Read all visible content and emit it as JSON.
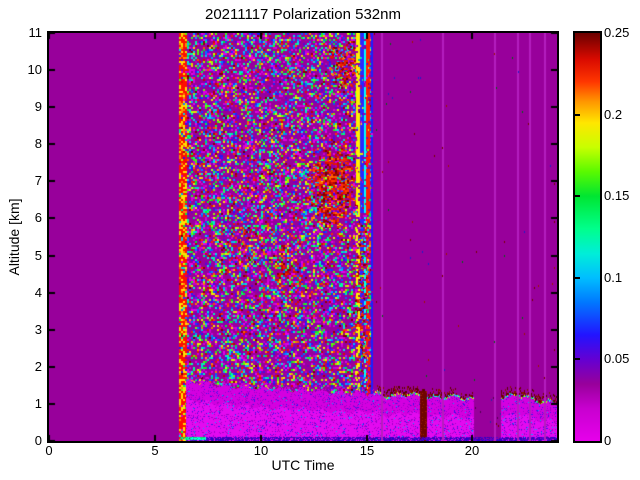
{
  "title": "20211117 Polarization 532nm",
  "chart_data": {
    "type": "heatmap",
    "title": "20211117 Polarization 532nm",
    "xlabel": "UTC Time",
    "ylabel": "Altitude [km]",
    "xlim": [
      0,
      24
    ],
    "ylim": [
      0,
      11
    ],
    "x_ticks": [
      0,
      5,
      10,
      15,
      20
    ],
    "x_tick_labels": [
      "0",
      "5",
      "10",
      "15",
      "20"
    ],
    "y_ticks": [
      0,
      1,
      2,
      3,
      4,
      5,
      6,
      7,
      8,
      9,
      10,
      11
    ],
    "y_tick_labels": [
      "0",
      "1",
      "2",
      "3",
      "4",
      "5",
      "6",
      "7",
      "8",
      "9",
      "10",
      "11"
    ],
    "colorbar": {
      "min": 0,
      "max": 0.25,
      "ticks": [
        0,
        0.05,
        0.1,
        0.15,
        0.2,
        0.25
      ],
      "tick_labels": [
        "0",
        "0.05",
        "0.1",
        "0.15",
        "0.2",
        "0.25"
      ]
    },
    "colormap_stops": [
      [
        0.0,
        "#E600EB"
      ],
      [
        0.02,
        "#C800CF"
      ],
      [
        0.035,
        "#98009B"
      ],
      [
        0.05,
        "#6400D2"
      ],
      [
        0.065,
        "#2214FF"
      ],
      [
        0.085,
        "#0078FF"
      ],
      [
        0.1,
        "#00BEFF"
      ],
      [
        0.115,
        "#00EED8"
      ],
      [
        0.13,
        "#00FF8C"
      ],
      [
        0.15,
        "#00E632"
      ],
      [
        0.165,
        "#5AFA00"
      ],
      [
        0.18,
        "#C8FF00"
      ],
      [
        0.195,
        "#FFE600"
      ],
      [
        0.208,
        "#FF9600"
      ],
      [
        0.22,
        "#FF3700"
      ],
      [
        0.234,
        "#D90A00"
      ],
      [
        0.25,
        "#6B0000"
      ]
    ],
    "features": [
      "Uniform low-depolarization background (~0) from 00:00 to ~06:10 UTC",
      "Saturated red/yellow vertical stripe at ~06:15 UTC spanning 0-11 km",
      "High random speckle noise column from ~06:15 to ~15:15 UTC across all altitudes",
      "Dark-red (>=0.21) cloud patches ~12:00-14:45 UTC at 5.7-8.1 km and 9.5-10.9 km",
      "Saturated yellow/red/green vertical stripes ~14:35-15:10 UTC, blue line at ~15:13",
      "Magenta boundary-layer band (~0.01) below ~1.5 km from ~06:30 to 24:00 UTC",
      "Cyan/green boundary-layer top edge after ~15:20 UTC with dark-red layer above it",
      "Dark-red column in boundary layer ~17:35 UTC; band gap ~20:05-21:20 UTC",
      "Faint lighter-purple vertical lines at ~15:42, 18:33, 21:00, 22:06, 22:42, 23:24 UTC"
    ],
    "render_features": {
      "seed": 20211117,
      "background_color": "#98009B",
      "noise_band": {
        "t0": 6.15,
        "t1": 15.25,
        "draw_p": 0.55,
        "gamma": 1.5,
        "darkred_p": 0.05
      },
      "red_stripe": {
        "t0": 6.16,
        "t1": 6.46
      },
      "end_stripes": {
        "t0": 14.55,
        "t1": 15.12,
        "colors": [
          "#FFF000",
          "#FF1E00",
          "#00DC00",
          "#FF9600",
          "#00FFFF",
          "#2828FF"
        ],
        "weights": [
          0.34,
          0.26,
          0.14,
          0.11,
          0.08,
          0.07
        ]
      },
      "blue_line_t": 15.22,
      "red_blobs": [
        [
          12.0,
          14.75,
          5.7,
          8.1,
          0.5
        ],
        [
          13.2,
          14.6,
          9.5,
          10.9,
          0.4
        ],
        [
          10.3,
          12.2,
          3.8,
          5.6,
          0.18
        ],
        [
          8.2,
          10.0,
          4.5,
          6.3,
          0.1
        ],
        [
          14.3,
          15.05,
          1.5,
          6.0,
          0.35
        ]
      ],
      "boundary_layer": {
        "t0": 6.5,
        "gap": [
          20.05,
          21.35
        ],
        "top_profile": [
          [
            6.5,
            1.62
          ],
          [
            8,
            1.5
          ],
          [
            10,
            1.42
          ],
          [
            12,
            1.36
          ],
          [
            14,
            1.3
          ],
          [
            15.4,
            1.28
          ],
          [
            16,
            1.2
          ],
          [
            17,
            1.28
          ],
          [
            18,
            1.16
          ],
          [
            19,
            1.22
          ],
          [
            19.9,
            1.12
          ],
          [
            21.4,
            1.2
          ],
          [
            22.3,
            1.24
          ],
          [
            23,
            1.08
          ],
          [
            24,
            1.02
          ]
        ],
        "fill_color": "#D400E0",
        "fill_color2": "#E30AF0",
        "edge_colors": [
          "#00FFFF",
          "#00FF3C",
          "#B4FF00",
          "#00C8FF",
          "#FFF000"
        ],
        "edge_darkred_segments": [
          [
            15.45,
            18.6,
            0.5
          ],
          [
            18.6,
            20.0,
            0.3
          ],
          [
            21.35,
            23.3,
            0.45
          ],
          [
            23.3,
            24,
            0.25
          ]
        ]
      },
      "darkred_column": {
        "t0": 17.55,
        "t1": 17.85,
        "top_alt": 1.35,
        "color": "#6E0500"
      },
      "bottom_cyan_line": {
        "t0": 6.2,
        "t1": 7.4,
        "colors": [
          "#00FFAA",
          "#00E65A",
          "#00FFFF"
        ]
      },
      "bottom_strip_colors": [
        "#4600AA",
        "#2800C8",
        "#5A00D2"
      ],
      "vertical_lines": {
        "t": [
          15.7,
          18.55,
          21.0,
          22.1,
          22.7,
          23.4
        ],
        "color": "#B41EBE"
      },
      "sparse_dots": {
        "p": 0.004,
        "colors": [
          "#780000",
          "#006414",
          "#1E1EC8",
          "#A01400"
        ]
      }
    }
  }
}
